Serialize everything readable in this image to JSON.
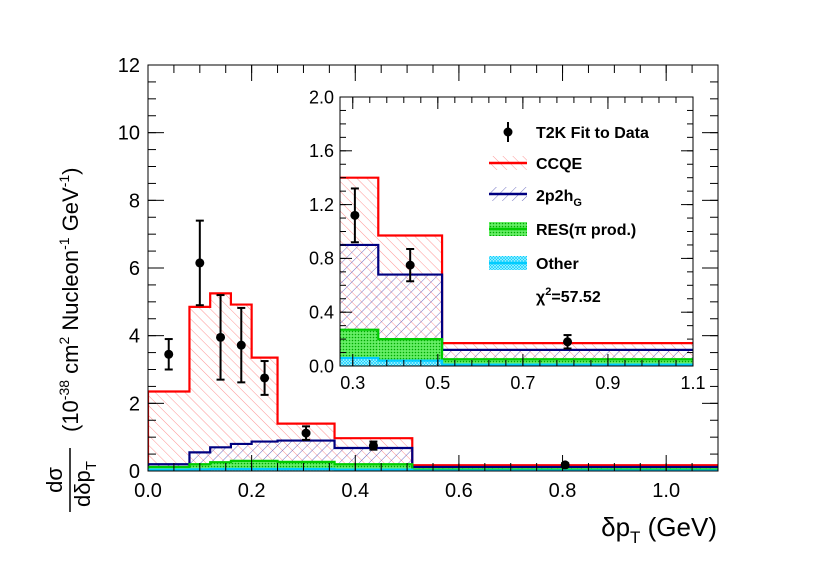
{
  "chart_data": {
    "type": "histogram",
    "axes": {
      "x_label_symbol": "δp",
      "x_label_sub": "T",
      "x_label_unit": " (GeV)",
      "y_label_num": "dσ",
      "y_label_den": "dδp",
      "y_label_den_sub": "T",
      "y_label_unit_prefix": "(10",
      "y_label_exp1": "-38",
      "y_label_mid1": " cm",
      "y_label_exp2": "2",
      "y_label_mid2": " Nucleon",
      "y_label_exp3": "-1",
      "y_label_mid3": " GeV",
      "y_label_exp4": "-1",
      "y_label_suffix": ")",
      "xlim": [
        0.0,
        1.1
      ],
      "ylim": [
        0,
        12
      ],
      "x_ticks": [
        "0.0",
        "0.2",
        "0.4",
        "0.6",
        "0.8",
        "1.0"
      ],
      "x_tick_values": [
        0.0,
        0.2,
        0.4,
        0.6,
        0.8,
        1.0
      ],
      "y_ticks": [
        "0",
        "2",
        "4",
        "6",
        "8",
        "10",
        "12"
      ],
      "y_tick_values": [
        0,
        2,
        4,
        6,
        8,
        10,
        12
      ]
    },
    "bin_edges": [
      0.0,
      0.08,
      0.12,
      0.16,
      0.2,
      0.25,
      0.36,
      0.51,
      1.1
    ],
    "series": [
      {
        "name": "CCQE",
        "color": "#ff0000",
        "values": [
          2.35,
          4.85,
          5.25,
          4.92,
          3.35,
          1.4,
          0.97,
          0.17
        ]
      },
      {
        "name": "2p2h",
        "color": "#000080",
        "values": [
          0.2,
          0.55,
          0.7,
          0.8,
          0.87,
          0.9,
          0.68,
          0.12
        ]
      },
      {
        "name": "RES(π prod.)",
        "color": "#00cc00",
        "values": [
          0.12,
          0.2,
          0.26,
          0.3,
          0.3,
          0.27,
          0.2,
          0.05
        ]
      },
      {
        "name": "Other",
        "color": "#00ccff",
        "values": [
          0.04,
          0.05,
          0.06,
          0.06,
          0.06,
          0.06,
          0.04,
          0.01
        ]
      }
    ],
    "data_points": {
      "name": "T2K Fit to Data",
      "x": [
        0.04,
        0.1,
        0.14,
        0.18,
        0.225,
        0.305,
        0.435,
        0.805
      ],
      "y": [
        3.45,
        6.15,
        3.95,
        3.72,
        2.75,
        1.12,
        0.75,
        0.18
      ],
      "err": [
        0.45,
        1.25,
        1.25,
        1.1,
        0.5,
        0.2,
        0.12,
        0.05
      ]
    },
    "inset": {
      "xlim": [
        0.27,
        1.1
      ],
      "ylim": [
        0.0,
        2.0
      ],
      "x_ticks": [
        "0.3",
        "0.5",
        "0.7",
        "0.9",
        "1.1"
      ],
      "x_tick_values": [
        0.3,
        0.5,
        0.7,
        0.9,
        1.1
      ],
      "y_ticks": [
        "0.0",
        "0.4",
        "0.8",
        "1.2",
        "1.6",
        "2.0"
      ],
      "y_tick_values": [
        0.0,
        0.4,
        0.8,
        1.2,
        1.6,
        2.0
      ]
    },
    "legend": {
      "items": [
        {
          "key": "data",
          "label": "T2K Fit to Data"
        },
        {
          "key": "ccqe",
          "label": "CCQE"
        },
        {
          "key": "twop2h",
          "label": "2p2h",
          "sub": "G"
        },
        {
          "key": "res",
          "label": "RES(π prod.)"
        },
        {
          "key": "other",
          "label": "Other"
        }
      ],
      "chi2_symbol": "χ",
      "chi2_exp": "2",
      "chi2_value": "=57.52"
    }
  }
}
